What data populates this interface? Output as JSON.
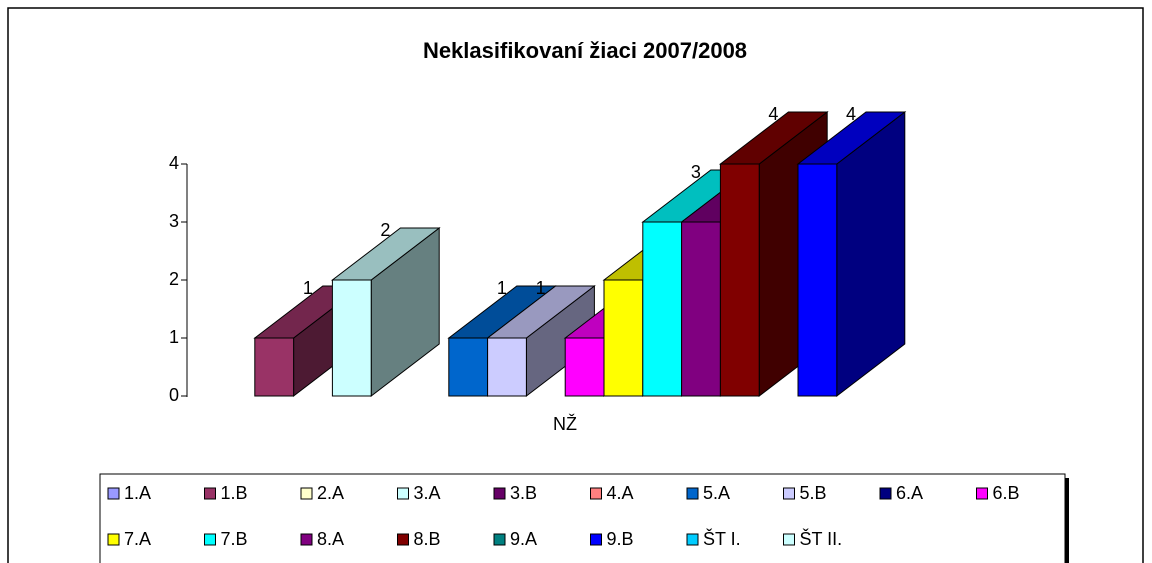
{
  "chart_data": {
    "type": "bar3d",
    "title": "Neklasifikovaní žiaci 2007/2008",
    "categories": [
      "NŽ"
    ],
    "series": [
      {
        "name": "1.A",
        "color": "#9999ff",
        "values": [
          null
        ]
      },
      {
        "name": "1.B",
        "color": "#993366",
        "values": [
          1
        ]
      },
      {
        "name": "2.A",
        "color": "#ffffcc",
        "values": [
          null
        ]
      },
      {
        "name": "3.A",
        "color": "#ccffff",
        "values": [
          2
        ]
      },
      {
        "name": "3.B",
        "color": "#660066",
        "values": [
          null
        ]
      },
      {
        "name": "4.A",
        "color": "#ff8080",
        "values": [
          null
        ]
      },
      {
        "name": "5.A",
        "color": "#0066cc",
        "values": [
          1
        ]
      },
      {
        "name": "5.B",
        "color": "#ccccff",
        "values": [
          1
        ]
      },
      {
        "name": "6.A",
        "color": "#000080",
        "values": [
          null
        ]
      },
      {
        "name": "6.B",
        "color": "#ff00ff",
        "values": [
          1
        ]
      },
      {
        "name": "7.A",
        "color": "#ffff00",
        "values": [
          2
        ]
      },
      {
        "name": "7.B",
        "color": "#00ffff",
        "values": [
          3
        ]
      },
      {
        "name": "8.A",
        "color": "#800080",
        "values": [
          3
        ]
      },
      {
        "name": "8.B",
        "color": "#800000",
        "values": [
          4
        ]
      },
      {
        "name": "9.A",
        "color": "#008080",
        "values": [
          null
        ]
      },
      {
        "name": "9.B",
        "color": "#0000ff",
        "values": [
          4
        ]
      },
      {
        "name": "ŠT I.",
        "color": "#00ccff",
        "values": [
          null
        ]
      },
      {
        "name": "ŠT II.",
        "color": "#ccffff",
        "values": [
          null
        ]
      }
    ],
    "ylim": [
      0,
      4
    ],
    "yticks": [
      0,
      1,
      2,
      3,
      4
    ],
    "legend": "bottom"
  }
}
